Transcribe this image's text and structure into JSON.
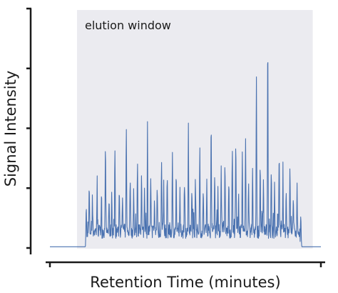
{
  "chart_data": {
    "type": "line",
    "title": "",
    "xlabel": "Retention Time (minutes)",
    "ylabel": "Signal Intensity",
    "annotation": "elution window",
    "shaded_region": {
      "x": [
        0.1,
        0.97
      ],
      "color": "#ebebf0"
    },
    "xlim": [
      0,
      1
    ],
    "ylim": [
      0,
      1
    ],
    "x_ticks": [
      0,
      1
    ],
    "y_ticks": [
      0,
      0.25,
      0.5,
      0.75,
      1
    ],
    "grid": false,
    "line_color": "#4a72b0",
    "series": [
      {
        "name": "",
        "peaks": [
          [
            0.134,
            0.17
          ],
          [
            0.145,
            0.21
          ],
          [
            0.157,
            0.12
          ],
          [
            0.174,
            0.19
          ],
          [
            0.19,
            0.16
          ],
          [
            0.205,
            0.43
          ],
          [
            0.218,
            0.14
          ],
          [
            0.228,
            0.18
          ],
          [
            0.24,
            0.33
          ],
          [
            0.256,
            0.21
          ],
          [
            0.268,
            0.15
          ],
          [
            0.282,
            0.49
          ],
          [
            0.296,
            0.24
          ],
          [
            0.309,
            0.17
          ],
          [
            0.323,
            0.31
          ],
          [
            0.338,
            0.26
          ],
          [
            0.349,
            0.19
          ],
          [
            0.36,
            0.45
          ],
          [
            0.372,
            0.23
          ],
          [
            0.386,
            0.14
          ],
          [
            0.396,
            0.24
          ],
          [
            0.412,
            0.32
          ],
          [
            0.42,
            0.19
          ],
          [
            0.433,
            0.27
          ],
          [
            0.452,
            0.34
          ],
          [
            0.466,
            0.24
          ],
          [
            0.48,
            0.16
          ],
          [
            0.497,
            0.2
          ],
          [
            0.511,
            0.47
          ],
          [
            0.524,
            0.21
          ],
          [
            0.537,
            0.23
          ],
          [
            0.553,
            0.38
          ],
          [
            0.566,
            0.18
          ],
          [
            0.579,
            0.26
          ],
          [
            0.595,
            0.5
          ],
          [
            0.608,
            0.28
          ],
          [
            0.62,
            0.18
          ],
          [
            0.632,
            0.25
          ],
          [
            0.646,
            0.3
          ],
          [
            0.66,
            0.21
          ],
          [
            0.673,
            0.4
          ],
          [
            0.686,
            0.43
          ],
          [
            0.696,
            0.16
          ],
          [
            0.71,
            0.31
          ],
          [
            0.722,
            0.41
          ],
          [
            0.733,
            0.24
          ],
          [
            0.748,
            0.27
          ],
          [
            0.762,
            0.69
          ],
          [
            0.776,
            0.33
          ],
          [
            0.788,
            0.22
          ],
          [
            0.804,
            0.88
          ],
          [
            0.817,
            0.3
          ],
          [
            0.829,
            0.19
          ],
          [
            0.846,
            0.38
          ],
          [
            0.86,
            0.26
          ],
          [
            0.872,
            0.18
          ],
          [
            0.886,
            0.31
          ],
          [
            0.898,
            0.16
          ],
          [
            0.912,
            0.2
          ],
          [
            0.926,
            0.12
          ]
        ]
      }
    ]
  }
}
